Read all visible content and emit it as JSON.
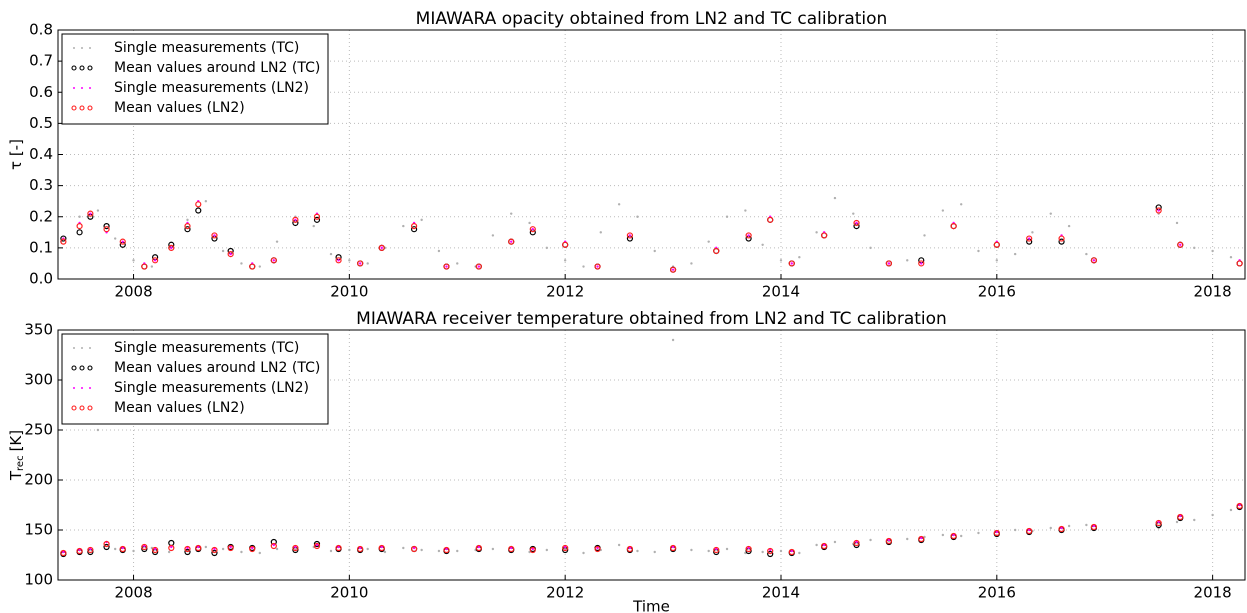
{
  "chart_data": [
    {
      "type": "scatter",
      "title": "MIAWARA opacity obtained from LN2 and TC calibration",
      "ylabel": "τ [-]",
      "xlim": [
        2007.3,
        2018.3
      ],
      "xticks": [
        2008,
        2010,
        2012,
        2014,
        2016,
        2018
      ],
      "ylim": [
        0,
        0.8
      ],
      "yticks": [
        {
          "value": 0,
          "label": "0.0"
        },
        0.1,
        0.2,
        0.3,
        0.4,
        0.5,
        0.6,
        0.7,
        0.8
      ],
      "grid": true,
      "legend": "upper left",
      "series": [
        {
          "name": "Single measurements (TC)",
          "color": "#b0b0b0",
          "marker": "dot",
          "x": [
            2007.33,
            2007.5,
            2007.67,
            2007.83,
            2008.0,
            2008.17,
            2008.33,
            2008.5,
            2008.67,
            2008.83,
            2009.0,
            2009.17,
            2009.33,
            2009.5,
            2009.67,
            2009.83,
            2010.0,
            2010.17,
            2010.33,
            2010.5,
            2010.67,
            2010.83,
            2011.0,
            2011.17,
            2011.33,
            2011.5,
            2011.67,
            2011.83,
            2012.0,
            2012.17,
            2012.33,
            2012.5,
            2012.67,
            2012.83,
            2013.0,
            2013.17,
            2013.33,
            2013.5,
            2013.67,
            2013.83,
            2014.0,
            2014.17,
            2014.33,
            2014.5,
            2014.67,
            2014.83,
            2015.0,
            2015.17,
            2015.33,
            2015.5,
            2015.67,
            2015.83,
            2016.0,
            2016.17,
            2016.33,
            2016.5,
            2016.67,
            2016.83,
            2017.5,
            2017.67,
            2017.83,
            2018.0,
            2018.17
          ],
          "values": [
            0.12,
            0.2,
            0.22,
            0.13,
            0.06,
            0.04,
            0.1,
            0.19,
            0.25,
            0.09,
            0.05,
            0.04,
            0.12,
            0.2,
            0.17,
            0.08,
            0.06,
            0.05,
            0.1,
            0.17,
            0.19,
            0.09,
            0.05,
            0.04,
            0.14,
            0.21,
            0.18,
            0.1,
            0.06,
            0.04,
            0.15,
            0.24,
            0.2,
            0.09,
            0.04,
            0.05,
            0.12,
            0.2,
            0.22,
            0.11,
            0.06,
            0.07,
            0.15,
            0.26,
            0.21,
            0.1,
            0.05,
            0.06,
            0.14,
            0.22,
            0.24,
            0.09,
            0.06,
            0.08,
            0.15,
            0.21,
            0.17,
            0.08,
            0.21,
            0.18,
            0.1,
            0.09,
            0.07
          ]
        },
        {
          "name": "Mean values around LN2 (TC)",
          "color": "#000000",
          "marker": "circle",
          "x": [
            2007.35,
            2007.5,
            2007.6,
            2007.75,
            2007.9,
            2008.1,
            2008.2,
            2008.35,
            2008.5,
            2008.6,
            2008.75,
            2008.9,
            2009.1,
            2009.3,
            2009.5,
            2009.7,
            2009.9,
            2010.1,
            2010.3,
            2010.6,
            2010.9,
            2011.2,
            2011.5,
            2011.7,
            2012.0,
            2012.3,
            2012.6,
            2013.0,
            2013.4,
            2013.7,
            2013.9,
            2014.1,
            2014.4,
            2014.7,
            2015.0,
            2015.3,
            2015.6,
            2016.0,
            2016.3,
            2016.6,
            2016.9,
            2017.5,
            2017.7,
            2018.25
          ],
          "values": [
            0.13,
            0.15,
            0.2,
            0.17,
            0.11,
            0.04,
            0.07,
            0.11,
            0.16,
            0.22,
            0.13,
            0.09,
            0.04,
            0.06,
            0.18,
            0.19,
            0.07,
            0.05,
            0.1,
            0.16,
            0.04,
            0.04,
            0.12,
            0.15,
            0.11,
            0.04,
            0.13,
            0.03,
            0.09,
            0.13,
            0.19,
            0.05,
            0.14,
            0.17,
            0.05,
            0.06,
            0.17,
            0.11,
            0.12,
            0.12,
            0.06,
            0.23,
            0.11,
            0.05
          ]
        },
        {
          "name": "Single measurements (LN2)",
          "color": "#ff00ff",
          "marker": "dot",
          "x": [
            2007.35,
            2007.5,
            2007.6,
            2007.75,
            2007.9,
            2008.1,
            2008.2,
            2008.35,
            2008.5,
            2008.6,
            2008.75,
            2008.9,
            2009.1,
            2009.3,
            2009.5,
            2009.7,
            2009.9,
            2010.1,
            2010.3,
            2010.6,
            2010.9,
            2011.2,
            2011.5,
            2011.7,
            2012.0,
            2012.3,
            2012.6,
            2013.0,
            2013.4,
            2013.7,
            2013.9,
            2014.1,
            2014.4,
            2014.7,
            2015.0,
            2015.3,
            2015.6,
            2016.0,
            2016.3,
            2016.6,
            2016.9,
            2017.5,
            2017.7,
            2018.25
          ],
          "values": [
            0.13,
            0.18,
            0.21,
            0.15,
            0.12,
            0.05,
            0.06,
            0.1,
            0.18,
            0.25,
            0.14,
            0.08,
            0.05,
            0.06,
            0.19,
            0.21,
            0.06,
            0.05,
            0.1,
            0.18,
            0.04,
            0.04,
            0.12,
            0.16,
            0.12,
            0.04,
            0.14,
            0.03,
            0.1,
            0.14,
            0.2,
            0.05,
            0.15,
            0.18,
            0.05,
            0.05,
            0.18,
            0.12,
            0.13,
            0.14,
            0.06,
            0.22,
            0.11,
            0.06
          ]
        },
        {
          "name": "Mean values (LN2)",
          "color": "#ff2020",
          "marker": "circle",
          "x": [
            2007.35,
            2007.5,
            2007.6,
            2007.75,
            2007.9,
            2008.1,
            2008.2,
            2008.35,
            2008.5,
            2008.6,
            2008.75,
            2008.9,
            2009.1,
            2009.3,
            2009.5,
            2009.7,
            2009.9,
            2010.1,
            2010.3,
            2010.6,
            2010.9,
            2011.2,
            2011.5,
            2011.7,
            2012.0,
            2012.3,
            2012.6,
            2013.0,
            2013.4,
            2013.7,
            2013.9,
            2014.1,
            2014.4,
            2014.7,
            2015.0,
            2015.3,
            2015.6,
            2016.0,
            2016.3,
            2016.6,
            2016.9,
            2017.5,
            2017.7,
            2018.25
          ],
          "values": [
            0.12,
            0.17,
            0.21,
            0.16,
            0.12,
            0.04,
            0.06,
            0.1,
            0.17,
            0.24,
            0.14,
            0.08,
            0.04,
            0.06,
            0.19,
            0.2,
            0.06,
            0.05,
            0.1,
            0.17,
            0.04,
            0.04,
            0.12,
            0.16,
            0.11,
            0.04,
            0.14,
            0.03,
            0.09,
            0.14,
            0.19,
            0.05,
            0.14,
            0.18,
            0.05,
            0.05,
            0.17,
            0.11,
            0.13,
            0.13,
            0.06,
            0.22,
            0.11,
            0.05
          ]
        }
      ]
    },
    {
      "type": "scatter",
      "title": "MIAWARA receiver temperature obtained from LN2 and TC calibration",
      "ylabel": "T",
      "ylabel_sub": "rec",
      "ylabel_suffix": "[K]",
      "xlabel": "Time",
      "xlim": [
        2007.3,
        2018.3
      ],
      "xticks": [
        2008,
        2010,
        2012,
        2014,
        2016,
        2018
      ],
      "ylim": [
        100,
        350
      ],
      "yticks": [
        100,
        150,
        200,
        250,
        300,
        350
      ],
      "grid": true,
      "legend": "upper left",
      "series": [
        {
          "name": "Single measurements (TC)",
          "color": "#b0b0b0",
          "marker": "dot",
          "x": [
            2007.33,
            2007.5,
            2007.67,
            2007.83,
            2008.0,
            2008.17,
            2008.33,
            2008.5,
            2008.67,
            2008.83,
            2009.0,
            2009.17,
            2009.33,
            2009.5,
            2009.67,
            2009.83,
            2010.0,
            2010.17,
            2010.33,
            2010.5,
            2010.67,
            2010.83,
            2011.0,
            2011.17,
            2011.33,
            2011.5,
            2011.67,
            2011.83,
            2012.0,
            2012.17,
            2012.33,
            2012.5,
            2012.67,
            2012.83,
            2013.0,
            2013.17,
            2013.33,
            2013.5,
            2013.67,
            2013.83,
            2014.0,
            2014.17,
            2014.33,
            2014.5,
            2014.67,
            2014.83,
            2015.0,
            2015.17,
            2015.33,
            2015.5,
            2015.67,
            2015.83,
            2016.0,
            2016.17,
            2016.33,
            2016.5,
            2016.67,
            2016.83,
            2017.5,
            2017.67,
            2017.83,
            2018.0,
            2018.17
          ],
          "values": [
            127,
            130,
            250,
            131,
            129,
            132,
            128,
            130,
            133,
            131,
            128,
            127,
            131,
            130,
            133,
            129,
            130,
            131,
            128,
            132,
            130,
            129,
            129,
            130,
            131,
            133,
            128,
            130,
            131,
            127,
            130,
            135,
            129,
            128,
            340,
            130,
            129,
            131,
            127,
            128,
            129,
            127,
            135,
            138,
            136,
            140,
            139,
            141,
            143,
            145,
            144,
            147,
            148,
            150,
            149,
            152,
            154,
            155,
            152,
            158,
            160,
            165,
            170
          ]
        },
        {
          "name": "Mean values around LN2 (TC)",
          "color": "#000000",
          "marker": "circle",
          "x": [
            2007.35,
            2007.5,
            2007.6,
            2007.75,
            2007.9,
            2008.1,
            2008.2,
            2008.35,
            2008.5,
            2008.6,
            2008.75,
            2008.9,
            2009.1,
            2009.3,
            2009.5,
            2009.7,
            2009.9,
            2010.1,
            2010.3,
            2010.6,
            2010.9,
            2011.2,
            2011.5,
            2011.7,
            2012.0,
            2012.3,
            2012.6,
            2013.0,
            2013.4,
            2013.7,
            2013.9,
            2014.1,
            2014.4,
            2014.7,
            2015.0,
            2015.3,
            2015.6,
            2016.0,
            2016.3,
            2016.6,
            2016.9,
            2017.5,
            2017.7,
            2018.25
          ],
          "values": [
            126,
            128,
            128,
            133,
            130,
            131,
            128,
            137,
            128,
            131,
            127,
            133,
            132,
            138,
            130,
            136,
            131,
            130,
            131,
            131,
            129,
            131,
            130,
            131,
            130,
            132,
            130,
            131,
            128,
            129,
            126,
            127,
            133,
            135,
            138,
            140,
            143,
            146,
            148,
            150,
            152,
            155,
            162,
            173
          ]
        },
        {
          "name": "Single measurements (LN2)",
          "color": "#ff00ff",
          "marker": "dot",
          "x": [
            2007.35,
            2007.5,
            2007.6,
            2007.75,
            2007.9,
            2008.1,
            2008.2,
            2008.35,
            2008.5,
            2008.6,
            2008.75,
            2008.9,
            2009.1,
            2009.3,
            2009.5,
            2009.7,
            2009.9,
            2010.1,
            2010.3,
            2010.6,
            2010.9,
            2011.2,
            2011.5,
            2011.7,
            2012.0,
            2012.3,
            2012.6,
            2013.0,
            2013.4,
            2013.7,
            2013.9,
            2014.1,
            2014.4,
            2014.7,
            2015.0,
            2015.3,
            2015.6,
            2016.0,
            2016.3,
            2016.6,
            2016.9,
            2017.5,
            2017.7,
            2018.25
          ],
          "values": [
            128,
            130,
            131,
            138,
            132,
            134,
            131,
            133,
            132,
            133,
            131,
            133,
            132,
            135,
            133,
            135,
            133,
            132,
            133,
            132,
            131,
            133,
            132,
            131,
            133,
            132,
            132,
            133,
            131,
            132,
            130,
            129,
            135,
            138,
            140,
            142,
            145,
            148,
            150,
            152,
            154,
            158,
            164,
            175
          ]
        },
        {
          "name": "Mean values (LN2)",
          "color": "#ff2020",
          "marker": "circle",
          "x": [
            2007.35,
            2007.5,
            2007.6,
            2007.75,
            2007.9,
            2008.1,
            2008.2,
            2008.35,
            2008.5,
            2008.6,
            2008.75,
            2008.9,
            2009.1,
            2009.3,
            2009.5,
            2009.7,
            2009.9,
            2010.1,
            2010.3,
            2010.6,
            2010.9,
            2011.2,
            2011.5,
            2011.7,
            2012.0,
            2012.3,
            2012.6,
            2013.0,
            2013.4,
            2013.7,
            2013.9,
            2014.1,
            2014.4,
            2014.7,
            2015.0,
            2015.3,
            2015.6,
            2016.0,
            2016.3,
            2016.6,
            2016.9,
            2017.5,
            2017.7,
            2018.25
          ],
          "values": [
            127,
            129,
            130,
            136,
            131,
            133,
            130,
            132,
            131,
            132,
            130,
            132,
            131,
            134,
            132,
            134,
            132,
            131,
            132,
            131,
            130,
            132,
            131,
            130,
            132,
            131,
            131,
            132,
            130,
            131,
            129,
            128,
            134,
            137,
            139,
            141,
            144,
            147,
            149,
            151,
            153,
            157,
            163,
            174
          ]
        }
      ]
    }
  ]
}
